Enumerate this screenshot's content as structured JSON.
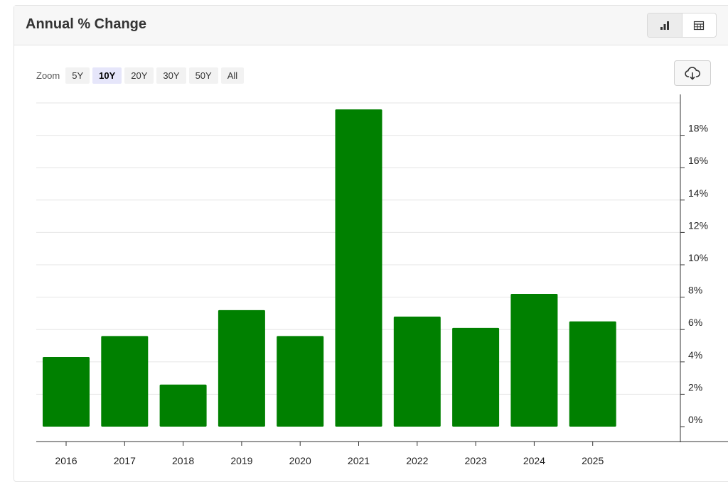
{
  "header": {
    "title": "Annual % Change"
  },
  "view_toggle": {
    "chart_icon": "bar-chart-icon",
    "table_icon": "table-icon"
  },
  "zoom": {
    "label": "Zoom",
    "options": [
      "5Y",
      "10Y",
      "20Y",
      "30Y",
      "50Y",
      "All"
    ],
    "selected": "10Y"
  },
  "download": {
    "icon": "cloud-download-icon"
  },
  "colors": {
    "bar": "#008000",
    "grid": "#e6e6e6",
    "axis": "#333333",
    "accent": "#e6e6fa"
  },
  "chart_data": {
    "type": "bar",
    "title": "",
    "xlabel": "",
    "ylabel": "",
    "categories": [
      "2016",
      "2017",
      "2018",
      "2019",
      "2020",
      "2021",
      "2022",
      "2023",
      "2024",
      "2025"
    ],
    "values": [
      4.3,
      5.6,
      2.6,
      7.2,
      5.6,
      19.6,
      6.8,
      6.1,
      8.2,
      6.5
    ],
    "ylim": [
      0,
      20
    ],
    "yticks": [
      0,
      2,
      4,
      6,
      8,
      10,
      12,
      14,
      16,
      18
    ],
    "ytick_format": "%",
    "yaxis_side": "right",
    "grid": true,
    "legend": "none"
  }
}
